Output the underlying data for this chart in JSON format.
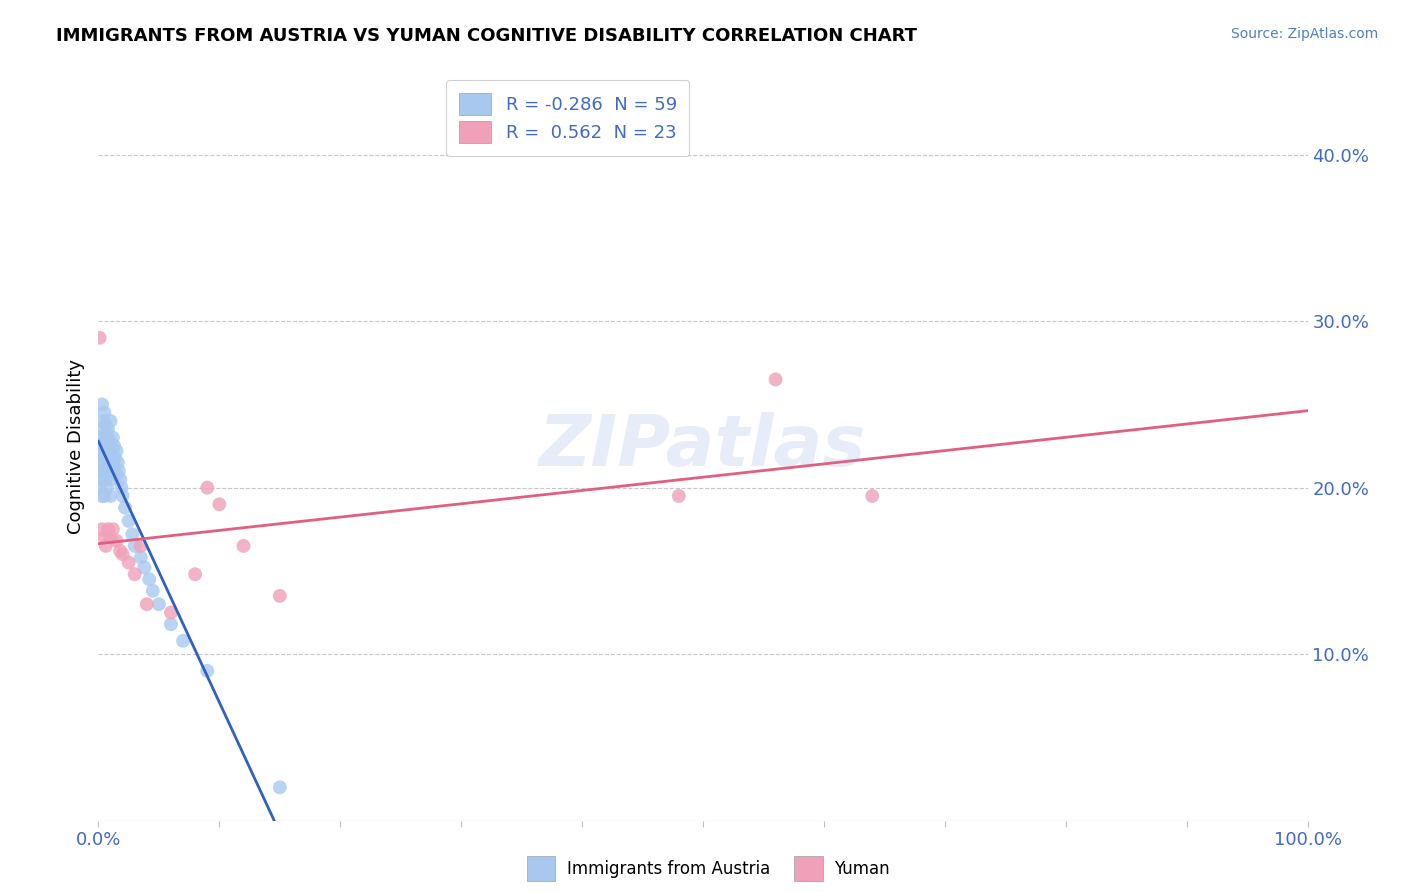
{
  "title": "IMMIGRANTS FROM AUSTRIA VS YUMAN COGNITIVE DISABILITY CORRELATION CHART",
  "source": "Source: ZipAtlas.com",
  "ylabel": "Cognitive Disability",
  "ylabel_right_ticks": [
    "10.0%",
    "20.0%",
    "30.0%",
    "40.0%"
  ],
  "ylabel_right_vals": [
    0.1,
    0.2,
    0.3,
    0.4
  ],
  "legend_label1": "Immigrants from Austria",
  "legend_label2": "Yuman",
  "legend_r1": "-0.286",
  "legend_n1": "59",
  "legend_r2": "0.562",
  "legend_n2": "23",
  "color_blue": "#a8c8f0",
  "color_pink": "#f0a0b8",
  "line_blue": "#3060c0",
  "line_pink": "#e06080",
  "line_gray": "#b0c0d8",
  "watermark": "ZIPatlas",
  "xlim": [
    0.0,
    1.0
  ],
  "ylim": [
    0.0,
    0.45
  ],
  "blue_x": [
    0.001,
    0.001,
    0.001,
    0.002,
    0.002,
    0.002,
    0.003,
    0.003,
    0.003,
    0.003,
    0.004,
    0.004,
    0.004,
    0.005,
    0.005,
    0.005,
    0.005,
    0.006,
    0.006,
    0.006,
    0.007,
    0.007,
    0.007,
    0.008,
    0.008,
    0.008,
    0.009,
    0.009,
    0.01,
    0.01,
    0.01,
    0.01,
    0.011,
    0.011,
    0.012,
    0.012,
    0.013,
    0.013,
    0.014,
    0.015,
    0.015,
    0.016,
    0.017,
    0.018,
    0.019,
    0.02,
    0.022,
    0.025,
    0.028,
    0.03,
    0.035,
    0.038,
    0.042,
    0.045,
    0.05,
    0.06,
    0.07,
    0.09,
    0.15
  ],
  "blue_y": [
    0.22,
    0.21,
    0.2,
    0.23,
    0.215,
    0.205,
    0.25,
    0.235,
    0.22,
    0.195,
    0.24,
    0.225,
    0.21,
    0.245,
    0.228,
    0.215,
    0.195,
    0.238,
    0.22,
    0.205,
    0.232,
    0.218,
    0.2,
    0.235,
    0.222,
    0.208,
    0.228,
    0.215,
    0.24,
    0.225,
    0.21,
    0.195,
    0.22,
    0.205,
    0.23,
    0.215,
    0.225,
    0.21,
    0.218,
    0.222,
    0.208,
    0.215,
    0.21,
    0.205,
    0.2,
    0.195,
    0.188,
    0.18,
    0.172,
    0.165,
    0.158,
    0.152,
    0.145,
    0.138,
    0.13,
    0.118,
    0.108,
    0.09,
    0.02
  ],
  "pink_x": [
    0.001,
    0.003,
    0.005,
    0.006,
    0.008,
    0.01,
    0.012,
    0.015,
    0.018,
    0.02,
    0.025,
    0.03,
    0.035,
    0.04,
    0.06,
    0.08,
    0.09,
    0.1,
    0.12,
    0.15,
    0.48,
    0.56,
    0.64
  ],
  "pink_y": [
    0.29,
    0.175,
    0.17,
    0.165,
    0.175,
    0.17,
    0.175,
    0.168,
    0.162,
    0.16,
    0.155,
    0.148,
    0.165,
    0.13,
    0.125,
    0.148,
    0.2,
    0.19,
    0.165,
    0.135,
    0.195,
    0.265,
    0.195
  ]
}
